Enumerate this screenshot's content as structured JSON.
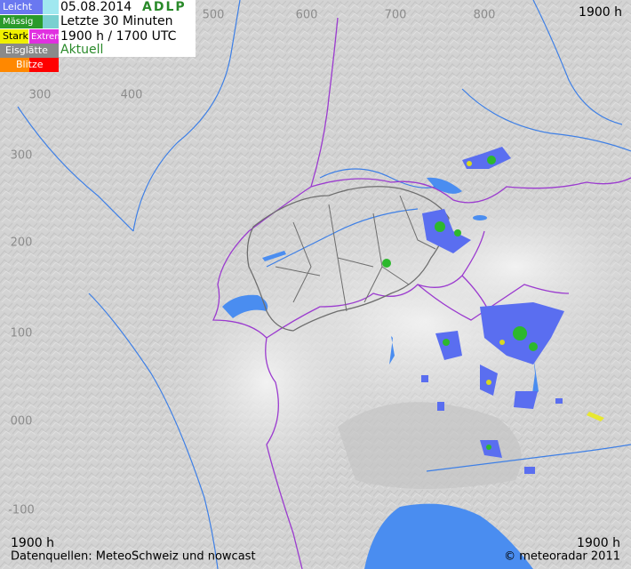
{
  "legend": {
    "items": [
      "Leicht",
      "Mässig",
      "Stark",
      "Extrem",
      "Eisglätte",
      "Blitze"
    ]
  },
  "header": {
    "date": "05.08.2014",
    "product": "ADLP",
    "period": "Letzte 30 Minuten",
    "time": "1900 h / 1700 UTC",
    "status": "Aktuell"
  },
  "corners": {
    "top_right": "1900 h",
    "bottom_left": "1900 h",
    "bottom_right": "1900 h"
  },
  "grid_labels": {
    "top": [
      "500",
      "600",
      "700",
      "800"
    ],
    "inner": [
      "300",
      "400"
    ],
    "left": [
      "300",
      "200",
      "100",
      "000",
      "-100"
    ]
  },
  "footer": {
    "sources": "Datenquellen: MeteoSchweiz und nowcast",
    "copyright": "© meteoradar 2011"
  }
}
